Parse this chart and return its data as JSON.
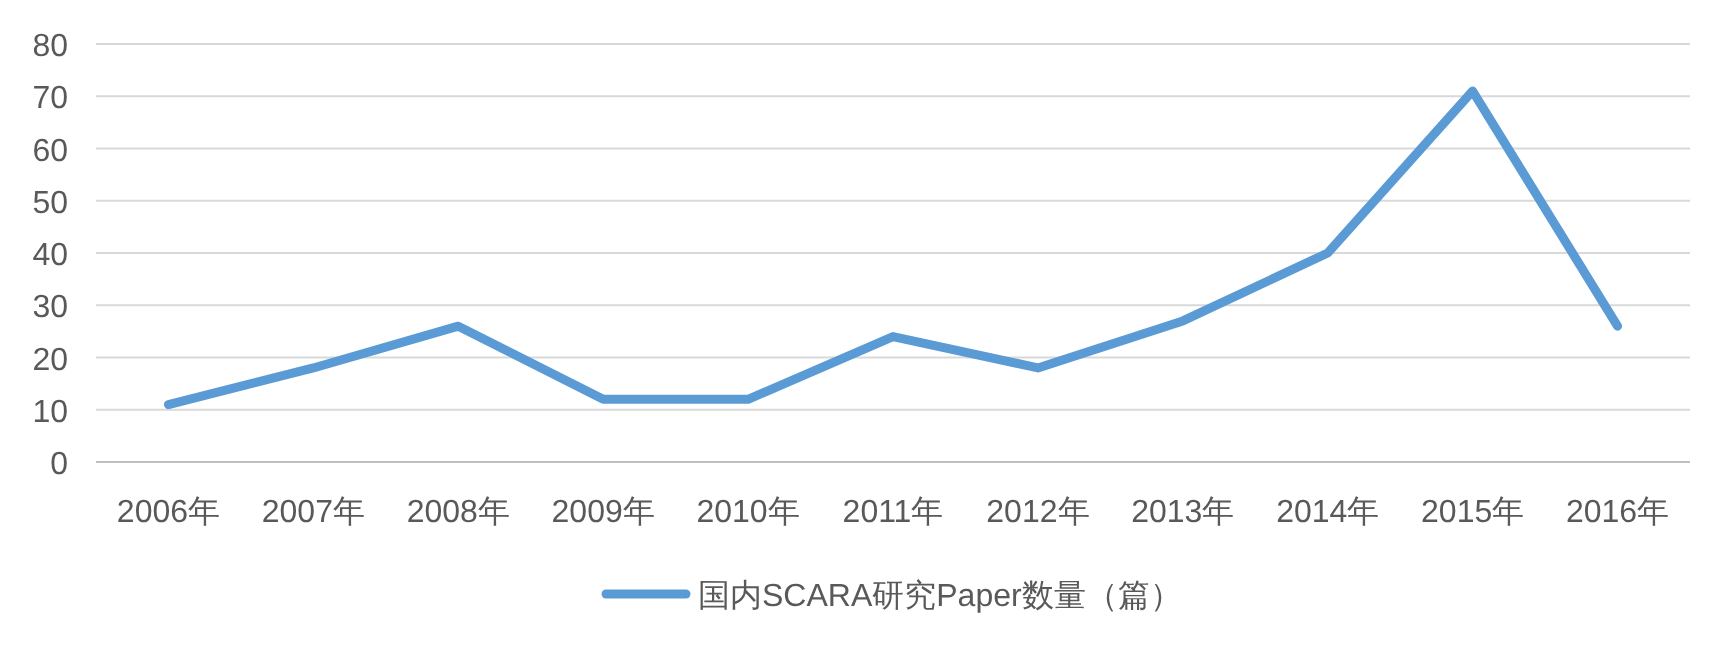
{
  "chart_data": {
    "type": "line",
    "categories": [
      "2006年",
      "2007年",
      "2008年",
      "2009年",
      "2010年",
      "2011年",
      "2012年",
      "2013年",
      "2014年",
      "2015年",
      "2016年"
    ],
    "series": [
      {
        "name": "国内SCARA研究Paper数量（篇）",
        "color": "#5b9bd5",
        "values": [
          11,
          18,
          26,
          12,
          12,
          24,
          18,
          27,
          40,
          71,
          26
        ]
      }
    ],
    "ylim": [
      0,
      80
    ],
    "yticks": [
      0,
      10,
      20,
      30,
      40,
      50,
      60,
      70,
      80
    ],
    "grid": "y",
    "legend": "bottom"
  }
}
